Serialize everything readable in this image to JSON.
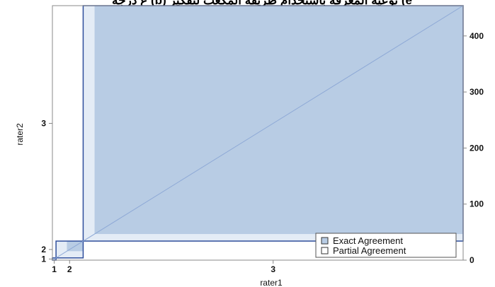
{
  "chart_data": {
    "type": "agreement",
    "title": "",
    "title_partial": "ع درجة (b) نوعية المعرفة باستخدام طريقة المكعب لتفكير (e",
    "xlabel": "rater1",
    "ylabel": "rater2",
    "x_categories": [
      "1",
      "2",
      "3"
    ],
    "y_categories": [
      "1",
      "2",
      "3"
    ],
    "x_marginal_totals": [
      4,
      30,
      420
    ],
    "y_marginal_totals": [
      4,
      30,
      420
    ],
    "y2_ticks": [
      0,
      100,
      200,
      300,
      400
    ],
    "y2_max": 454,
    "exact_agreement_rects": [
      {
        "row": "1",
        "col": "1",
        "fraction": 0.5
      },
      {
        "row": "2",
        "col": "2",
        "fraction": 0.6
      },
      {
        "row": "3",
        "col": "3",
        "fraction": 0.97
      }
    ],
    "partial_agreement_rects": [
      {
        "row": "1",
        "col": "1"
      },
      {
        "row": "2",
        "col": "2"
      },
      {
        "row": "3",
        "col": "3"
      }
    ],
    "legend": {
      "position": "bottom-right",
      "items": [
        {
          "label": "Exact Agreement",
          "color": "#b8cce4"
        },
        {
          "label": "Partial Agreement",
          "color": "#ffffff"
        }
      ]
    },
    "colors": {
      "exact": "#b8cce4",
      "partial": "#e4ecf6",
      "outline": "#2e4e9c",
      "diagonal": "#8ea9d6",
      "axis": "#888888"
    }
  }
}
